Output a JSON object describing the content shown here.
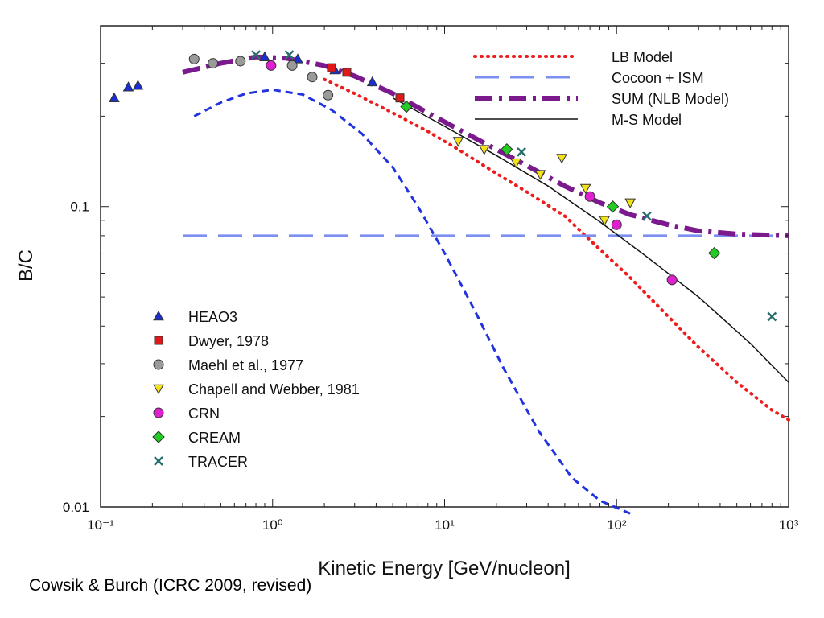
{
  "caption": "Cowsik & Burch (ICRC 2009, revised)",
  "chart_data": {
    "type": "scatter",
    "title": "",
    "xlabel": "Kinetic Energy [GeV/nucleon]",
    "ylabel": "B/C",
    "xscale": "log",
    "yscale": "log",
    "xlim": [
      0.1,
      1000
    ],
    "ylim": [
      0.01,
      0.4
    ],
    "x_ticks": [
      {
        "value": 0.1,
        "label": "10⁻¹"
      },
      {
        "value": 1,
        "label": "10⁰"
      },
      {
        "value": 10,
        "label": "10¹"
      },
      {
        "value": 100,
        "label": "10²"
      },
      {
        "value": 1000,
        "label": "10³"
      }
    ],
    "y_ticks": [
      {
        "value": 0.01,
        "label": "0.01"
      },
      {
        "value": 0.1,
        "label": "0.1"
      }
    ],
    "grid": false,
    "model_legend_position": "top-right",
    "data_legend_position": "bottom-left",
    "models": [
      {
        "name": "LB Model",
        "style": "dotted",
        "color": "#ee1c1c",
        "x": [
          2,
          3,
          5,
          8,
          12,
          20,
          30,
          50,
          80,
          120,
          200,
          300,
          500,
          800,
          1000
        ],
        "y": [
          0.265,
          0.238,
          0.205,
          0.178,
          0.155,
          0.129,
          0.112,
          0.093,
          0.072,
          0.058,
          0.043,
          0.034,
          0.026,
          0.021,
          0.0195
        ]
      },
      {
        "name": "Cocoon + ISM",
        "style": "dashed",
        "color": "#7b8ff0",
        "x": [
          0.3,
          1000
        ],
        "y": [
          0.08,
          0.08
        ]
      },
      {
        "name": "SUM (NLB Model)",
        "style": "dash-dot",
        "color": "#7a1a8c",
        "x": [
          0.3,
          0.5,
          0.8,
          1.2,
          2,
          3,
          5,
          8,
          12,
          20,
          30,
          50,
          80,
          120,
          200,
          300,
          500,
          1000
        ],
        "y": [
          0.28,
          0.3,
          0.315,
          0.312,
          0.295,
          0.272,
          0.238,
          0.205,
          0.181,
          0.155,
          0.137,
          0.117,
          0.103,
          0.094,
          0.087,
          0.083,
          0.081,
          0.08
        ]
      },
      {
        "name": "M-S Model",
        "style": "solid",
        "color": "#111111",
        "x": [
          5,
          10,
          20,
          40,
          80,
          150,
          300,
          600,
          1000
        ],
        "y": [
          0.23,
          0.185,
          0.148,
          0.117,
          0.089,
          0.068,
          0.05,
          0.035,
          0.026
        ]
      },
      {
        "name": "",
        "style": "short-dash",
        "color": "#2233dd",
        "x": [
          0.35,
          0.5,
          0.7,
          1,
          1.5,
          2.2,
          3.3,
          5,
          7,
          10,
          15,
          22,
          35,
          55,
          80,
          120
        ],
        "y": [
          0.2,
          0.222,
          0.238,
          0.245,
          0.236,
          0.21,
          0.175,
          0.135,
          0.1,
          0.07,
          0.045,
          0.029,
          0.018,
          0.0125,
          0.0105,
          0.0095
        ]
      }
    ],
    "series": [
      {
        "name": "HEAO3",
        "marker": "triangle-up",
        "color": "#1b2fd0",
        "x": [
          0.12,
          0.145,
          0.165,
          0.9,
          1.4,
          2.3,
          3.8
        ],
        "y": [
          0.23,
          0.25,
          0.253,
          0.315,
          0.31,
          0.285,
          0.26
        ]
      },
      {
        "name": "Dwyer, 1978",
        "marker": "square",
        "color": "#e01818",
        "x": [
          2.2,
          2.7,
          5.5
        ],
        "y": [
          0.29,
          0.28,
          0.23
        ]
      },
      {
        "name": "Maehl et al., 1977",
        "marker": "circle",
        "color": "#9a9a9a",
        "x": [
          0.35,
          0.45,
          0.65,
          1.3,
          1.7,
          2.1
        ],
        "y": [
          0.31,
          0.3,
          0.305,
          0.295,
          0.27,
          0.235
        ]
      },
      {
        "name": "Chapell and Webber, 1981",
        "marker": "triangle-down",
        "color": "#f2e21a",
        "x": [
          12,
          17,
          26,
          36,
          48,
          66,
          85,
          120
        ],
        "y": [
          0.165,
          0.155,
          0.14,
          0.128,
          0.145,
          0.115,
          0.09,
          0.103
        ]
      },
      {
        "name": "CRN",
        "marker": "circle",
        "color": "#e020d0",
        "x": [
          0.98,
          70,
          100,
          210
        ],
        "y": [
          0.295,
          0.108,
          0.087,
          0.057
        ]
      },
      {
        "name": "CREAM",
        "marker": "diamond",
        "color": "#22cc22",
        "x": [
          6,
          23,
          95,
          370
        ],
        "y": [
          0.215,
          0.155,
          0.1,
          0.07
        ]
      },
      {
        "name": "TRACER",
        "marker": "x",
        "color": "#2a6e6e",
        "x": [
          0.8,
          1.25,
          28,
          150,
          800
        ],
        "y": [
          0.32,
          0.32,
          0.152,
          0.093,
          0.043
        ]
      }
    ]
  }
}
